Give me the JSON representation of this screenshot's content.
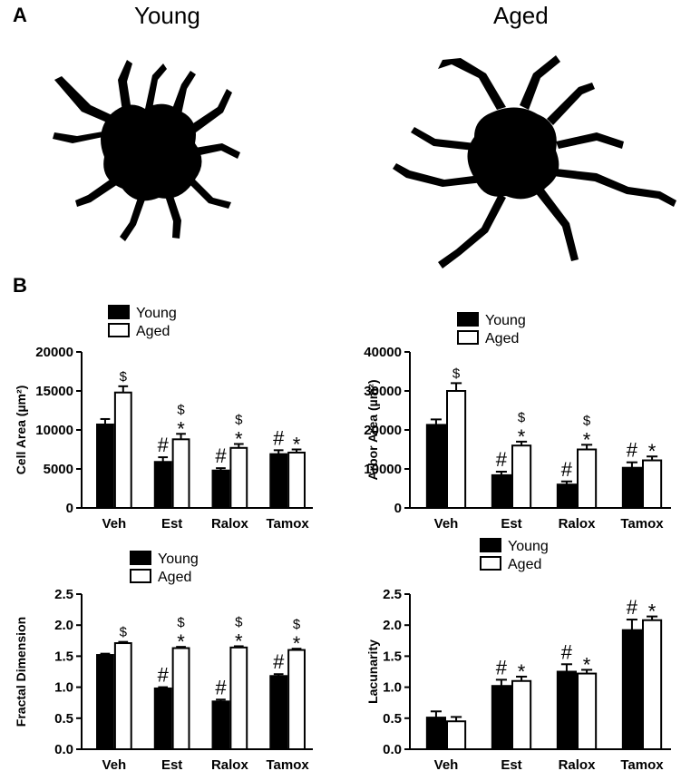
{
  "panel_labels": {
    "a": "A",
    "b": "B"
  },
  "cell_titles": {
    "young": "Young",
    "aged": "Aged"
  },
  "chart_data": [
    {
      "type": "bar",
      "ylabel": "Cell Area (µm²)",
      "ylim": [
        0,
        20000
      ],
      "yticks": [
        "0",
        "5000",
        "10000",
        "15000",
        "20000"
      ],
      "categories": [
        "Veh",
        "Est",
        "Ralox",
        "Tamox"
      ],
      "legend": [
        "Young",
        "Aged"
      ],
      "series": [
        {
          "name": "Young",
          "color": "#000000",
          "values": [
            10700,
            5900,
            4800,
            6900
          ],
          "errors": [
            700,
            600,
            300,
            500
          ],
          "annotations": [
            "",
            "#",
            "#",
            "#"
          ]
        },
        {
          "name": "Aged",
          "color": "#ffffff",
          "values": [
            14800,
            8800,
            7700,
            7100
          ],
          "errors": [
            800,
            700,
            500,
            400
          ],
          "annotations": [
            "$",
            "*\n$",
            "*\n$",
            "*"
          ]
        }
      ]
    },
    {
      "type": "bar",
      "ylabel": "Arbor Area (µm²)",
      "ylim": [
        0,
        40000
      ],
      "yticks": [
        "0",
        "10000",
        "20000",
        "30000",
        "40000"
      ],
      "categories": [
        "Veh",
        "Est",
        "Ralox",
        "Tamox"
      ],
      "legend": [
        "Young",
        "Aged"
      ],
      "series": [
        {
          "name": "Young",
          "color": "#000000",
          "values": [
            21300,
            8400,
            6000,
            10300
          ],
          "errors": [
            1400,
            900,
            800,
            1400
          ],
          "annotations": [
            "",
            "#",
            "#",
            "#"
          ]
        },
        {
          "name": "Aged",
          "color": "#ffffff",
          "values": [
            30000,
            16000,
            15000,
            12200
          ],
          "errors": [
            2000,
            1000,
            1200,
            1000
          ],
          "annotations": [
            "$",
            "*\n$",
            "*\n$",
            "*"
          ]
        }
      ]
    },
    {
      "type": "bar",
      "ylabel": "Fractal Dimension",
      "ylim": [
        0,
        2.5
      ],
      "yticks": [
        "0.0",
        "0.5",
        "1.0",
        "1.5",
        "2.0",
        "2.5"
      ],
      "categories": [
        "Veh",
        "Est",
        "Ralox",
        "Tamox"
      ],
      "legend": [
        "Young",
        "Aged"
      ],
      "series": [
        {
          "name": "Young",
          "color": "#000000",
          "values": [
            1.52,
            0.98,
            0.77,
            1.18
          ],
          "errors": [
            0.02,
            0.02,
            0.03,
            0.03
          ],
          "annotations": [
            "",
            "#",
            "#",
            "#"
          ]
        },
        {
          "name": "Aged",
          "color": "#ffffff",
          "values": [
            1.71,
            1.63,
            1.64,
            1.6
          ],
          "errors": [
            0.02,
            0.02,
            0.02,
            0.02
          ],
          "annotations": [
            "$",
            "*\n$",
            "*\n$",
            "*\n$"
          ]
        }
      ]
    },
    {
      "type": "bar",
      "ylabel": "Lacunarity",
      "ylim": [
        0,
        2.5
      ],
      "yticks": [
        "0.0",
        "0.5",
        "1.0",
        "1.5",
        "2.0",
        "2.5"
      ],
      "categories": [
        "Veh",
        "Est",
        "Ralox",
        "Tamox"
      ],
      "legend": [
        "Young",
        "Aged"
      ],
      "series": [
        {
          "name": "Young",
          "color": "#000000",
          "values": [
            0.51,
            1.02,
            1.25,
            1.92
          ],
          "errors": [
            0.1,
            0.1,
            0.12,
            0.17
          ],
          "annotations": [
            "",
            "#",
            "#",
            "#"
          ]
        },
        {
          "name": "Aged",
          "color": "#ffffff",
          "values": [
            0.45,
            1.1,
            1.22,
            2.08
          ],
          "errors": [
            0.07,
            0.07,
            0.06,
            0.06
          ],
          "annotations": [
            "",
            "*",
            "*",
            "*"
          ]
        }
      ]
    }
  ]
}
